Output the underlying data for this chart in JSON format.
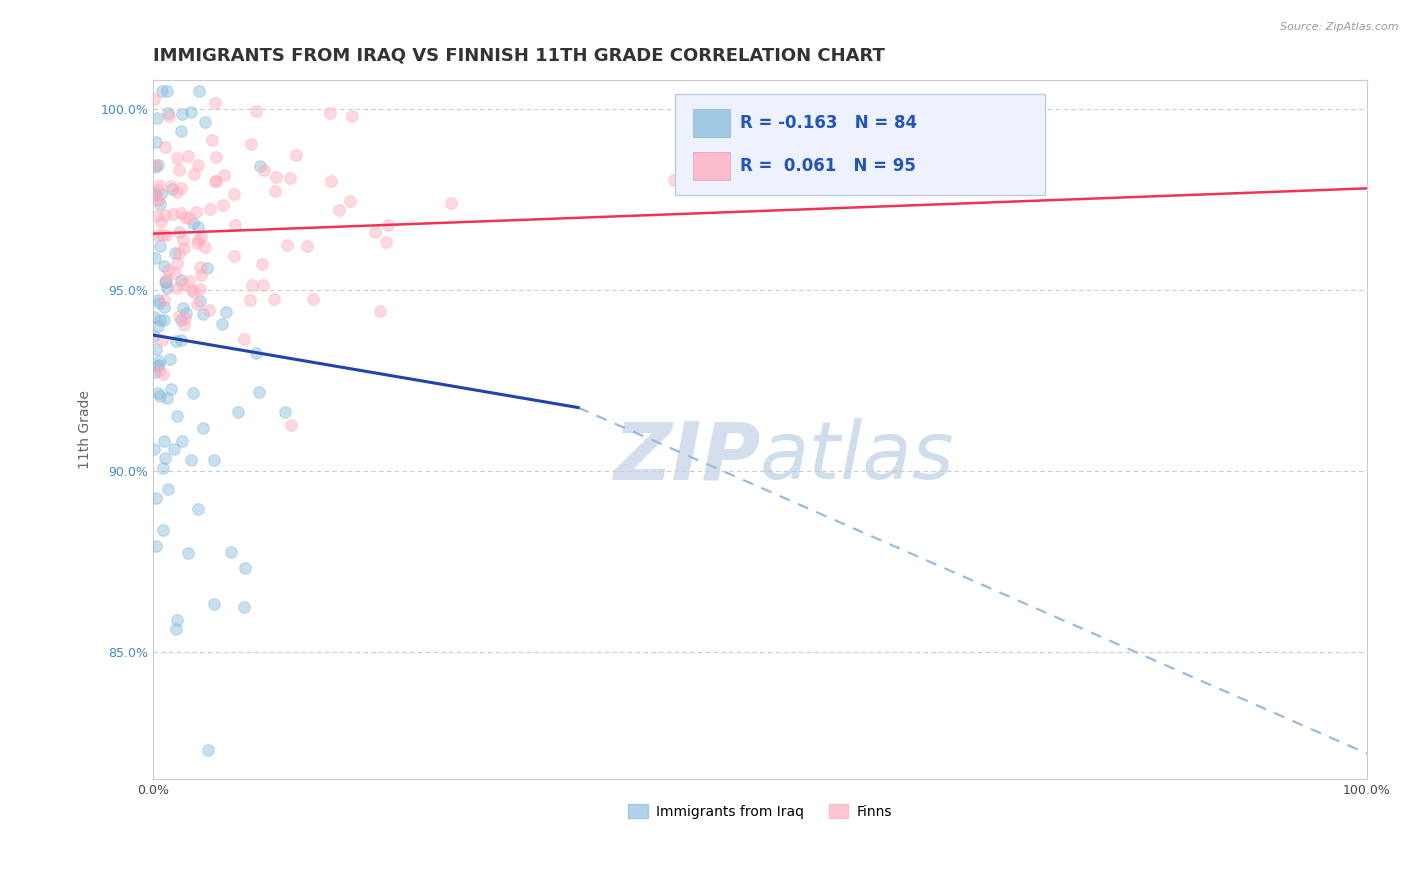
{
  "title": "IMMIGRANTS FROM IRAQ VS FINNISH 11TH GRADE CORRELATION CHART",
  "source_text": "Source: ZipAtlas.com",
  "ylabel": "11th Grade",
  "xlim": [
    0.0,
    1.0
  ],
  "ylim": [
    0.815,
    1.008
  ],
  "ytick_positions": [
    0.85,
    0.9,
    0.95,
    1.0
  ],
  "grid_color": "#cccccc",
  "background_color": "#ffffff",
  "blue_color": "#88bbdd",
  "pink_color": "#ffaabb",
  "blue_line_color": "#2244aa",
  "pink_line_color": "#ee3355",
  "dashed_line_color": "#99bbdd",
  "legend_box_color": "#eef2ff",
  "watermark_color": "#c8d4e8",
  "legend_label_blue": "Immigrants from Iraq",
  "legend_label_pink": "Finns",
  "blue_R": -0.163,
  "pink_R": 0.061,
  "blue_N": 84,
  "pink_N": 95,
  "seed_blue": 42,
  "seed_pink": 77,
  "marker_size": 70,
  "marker_alpha": 0.45,
  "title_fontsize": 13,
  "axis_fontsize": 10,
  "tick_fontsize": 9,
  "blue_line_x0": 0.0,
  "blue_line_x1": 0.35,
  "blue_line_y0": 0.9375,
  "blue_line_y1": 0.9175,
  "dashed_line_x0": 0.35,
  "dashed_line_x1": 1.0,
  "dashed_line_y0": 0.9175,
  "dashed_line_y1": 0.822,
  "pink_line_x0": 0.0,
  "pink_line_x1": 1.0,
  "pink_line_y0": 0.9655,
  "pink_line_y1": 0.978
}
